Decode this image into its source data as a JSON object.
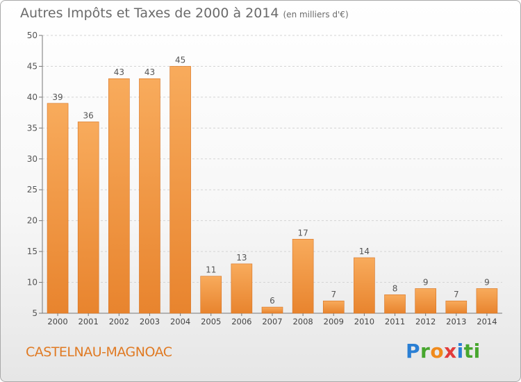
{
  "chart_data": {
    "type": "bar",
    "title": "Autres Impôts et Taxes de 2000 à 2014",
    "subtitle": "(en milliers d'€)",
    "xlabel": "",
    "ylabel": "",
    "categories": [
      "2000",
      "2001",
      "2002",
      "2003",
      "2004",
      "2005",
      "2006",
      "2007",
      "2008",
      "2009",
      "2010",
      "2011",
      "2012",
      "2013",
      "2014"
    ],
    "values": [
      39,
      36,
      43,
      43,
      45,
      11,
      13,
      6,
      17,
      7,
      14,
      8,
      9,
      7,
      9
    ],
    "ylim": [
      5,
      50
    ],
    "yticks": [
      5,
      10,
      15,
      20,
      25,
      30,
      35,
      40,
      45,
      50
    ],
    "grid": true,
    "bar_color": "#e8842e",
    "bar_highlight": "#f8ab5c",
    "label_color": "#555555"
  },
  "footer": {
    "location": "CASTELNAU-MAGNOAC",
    "brand_letters": [
      "P",
      "r",
      "o",
      "x",
      "i",
      "ti"
    ]
  }
}
